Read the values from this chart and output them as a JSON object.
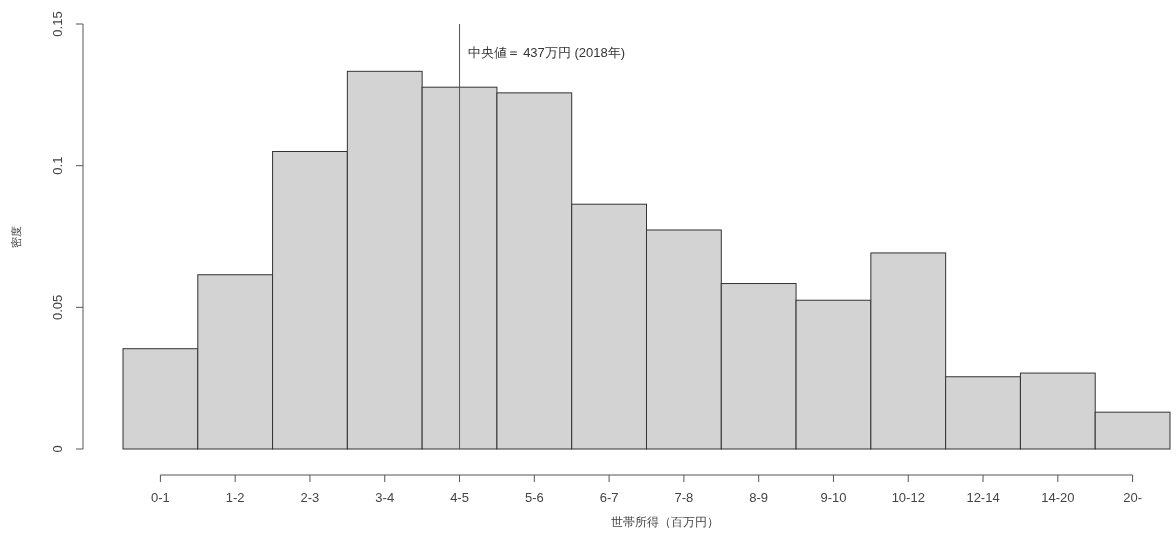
{
  "chart_data": {
    "type": "bar",
    "xlabel": "世帯所得（百万円）",
    "ylabel": "密度",
    "categories": [
      "0-1",
      "1-2",
      "2-3",
      "3-4",
      "4-5",
      "5-6",
      "6-7",
      "7-8",
      "8-9",
      "9-10",
      "10-12",
      "12-14",
      "14-20",
      "20-"
    ],
    "values": [
      0.0354,
      0.0615,
      0.105,
      0.1333,
      0.1277,
      0.1257,
      0.0864,
      0.0773,
      0.0584,
      0.0525,
      0.0692,
      0.0255,
      0.0268,
      0.013
    ],
    "color": "#d3d3d3",
    "ylim": [
      0,
      0.15
    ],
    "yticks": [
      0,
      0.05,
      0.1,
      0.15
    ],
    "ref_lines": [
      {
        "axis": "x",
        "value": "4-5",
        "label": "中央値＝ 437万円 (2018年)",
        "color": "#555555"
      }
    ]
  }
}
